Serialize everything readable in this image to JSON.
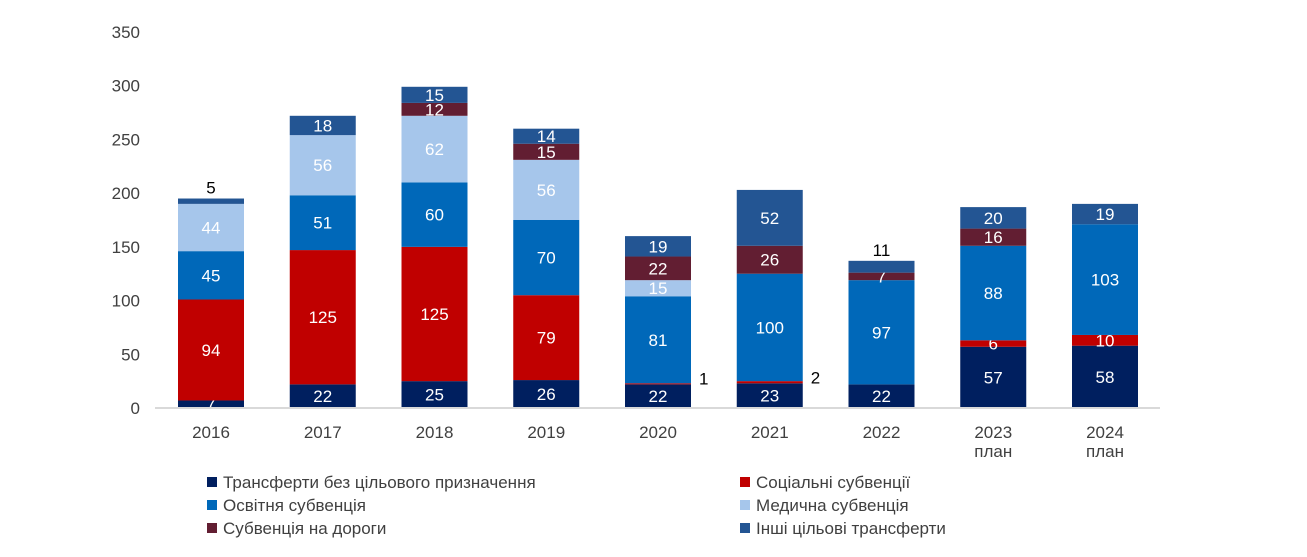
{
  "chart_data": {
    "type": "bar",
    "stacked": true,
    "title": "",
    "xlabel": "",
    "ylabel": "",
    "ylim": [
      0,
      350
    ],
    "yticks": [
      0,
      50,
      100,
      150,
      200,
      250,
      300,
      350
    ],
    "grid": false,
    "legend_placement": "bottom",
    "categories": [
      [
        "2016"
      ],
      [
        "2017"
      ],
      [
        "2018"
      ],
      [
        "2019"
      ],
      [
        "2020"
      ],
      [
        "2021"
      ],
      [
        "2022"
      ],
      [
        "2023",
        "план"
      ],
      [
        "2024",
        "план"
      ]
    ],
    "series": [
      {
        "name": "Трансферти без цільового призначення",
        "color": "#001F5F",
        "values": [
          7,
          22,
          25,
          26,
          22,
          23,
          22,
          57,
          58
        ]
      },
      {
        "name": "Соціальні субвенції",
        "color": "#C00000",
        "values": [
          94,
          125,
          125,
          79,
          1,
          2,
          0,
          6,
          10
        ]
      },
      {
        "name": "Освітня субвенція",
        "color": "#0068B9",
        "values": [
          45,
          51,
          60,
          70,
          81,
          100,
          97,
          88,
          103
        ]
      },
      {
        "name": "Медична субвенція",
        "color": "#A6C6EB",
        "values": [
          44,
          56,
          62,
          56,
          15,
          0,
          0,
          0,
          0
        ]
      },
      {
        "name": "Субвенція на дороги",
        "color": "#621E32",
        "values": [
          0,
          0,
          12,
          15,
          22,
          26,
          7,
          16,
          0
        ]
      },
      {
        "name": "Інші цільові трансферти",
        "color": "#235593",
        "values": [
          5,
          18,
          15,
          14,
          19,
          52,
          11,
          20,
          19
        ]
      }
    ]
  }
}
